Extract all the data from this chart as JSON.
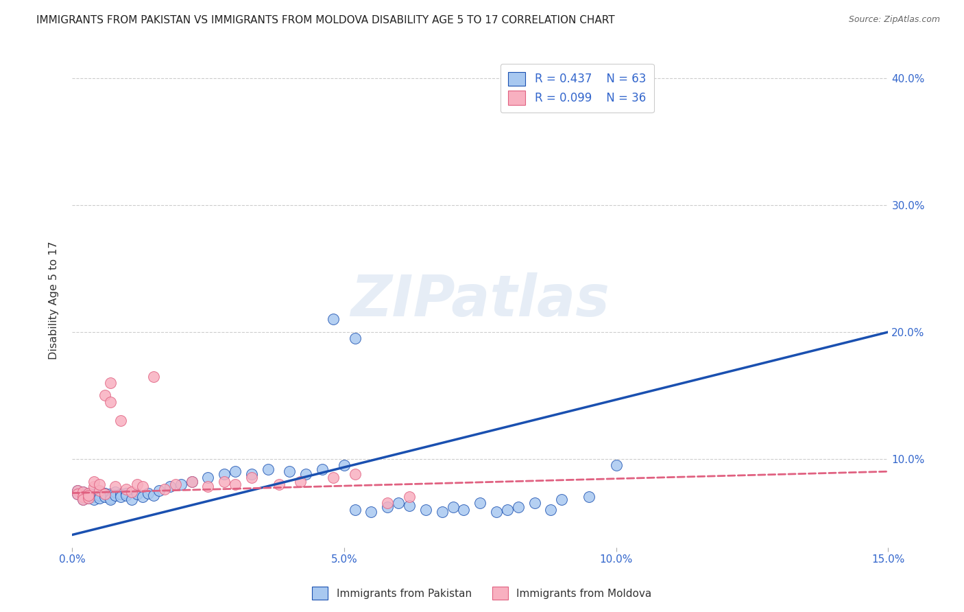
{
  "title": "IMMIGRANTS FROM PAKISTAN VS IMMIGRANTS FROM MOLDOVA DISABILITY AGE 5 TO 17 CORRELATION CHART",
  "source": "Source: ZipAtlas.com",
  "ylabel": "Disability Age 5 to 17",
  "xlim": [
    0.0,
    0.15
  ],
  "ylim": [
    0.03,
    0.42
  ],
  "xticks": [
    0.0,
    0.05,
    0.1,
    0.15
  ],
  "xticklabels": [
    "0.0%",
    "5.0%",
    "10.0%",
    "15.0%"
  ],
  "yticks": [
    0.1,
    0.2,
    0.3,
    0.4
  ],
  "yticklabels": [
    "10.0%",
    "20.0%",
    "30.0%",
    "40.0%"
  ],
  "legend_r1": "R = 0.437",
  "legend_n1": "N = 63",
  "legend_r2": "R = 0.099",
  "legend_n2": "N = 36",
  "color_pakistan": "#a8c8f0",
  "color_moldova": "#f8b0c0",
  "color_line_pakistan": "#1a50b0",
  "color_line_moldova": "#e06080",
  "background_color": "#ffffff",
  "grid_color": "#cccccc",
  "watermark": "ZIPatlas",
  "pakistan_x": [
    0.001,
    0.001,
    0.002,
    0.002,
    0.002,
    0.003,
    0.003,
    0.003,
    0.004,
    0.004,
    0.004,
    0.005,
    0.005,
    0.005,
    0.006,
    0.006,
    0.007,
    0.007,
    0.007,
    0.008,
    0.008,
    0.009,
    0.009,
    0.01,
    0.01,
    0.011,
    0.012,
    0.013,
    0.014,
    0.015,
    0.016,
    0.018,
    0.02,
    0.022,
    0.025,
    0.028,
    0.03,
    0.033,
    0.036,
    0.04,
    0.043,
    0.046,
    0.05,
    0.052,
    0.055,
    0.058,
    0.06,
    0.062,
    0.065,
    0.068,
    0.07,
    0.072,
    0.075,
    0.078,
    0.08,
    0.082,
    0.085,
    0.088,
    0.09,
    0.095,
    0.1,
    0.048,
    0.052
  ],
  "pakistan_y": [
    0.075,
    0.072,
    0.074,
    0.07,
    0.068,
    0.073,
    0.069,
    0.071,
    0.072,
    0.07,
    0.068,
    0.074,
    0.071,
    0.069,
    0.073,
    0.07,
    0.072,
    0.069,
    0.068,
    0.074,
    0.071,
    0.072,
    0.07,
    0.073,
    0.071,
    0.068,
    0.072,
    0.07,
    0.073,
    0.071,
    0.075,
    0.078,
    0.08,
    0.082,
    0.085,
    0.088,
    0.09,
    0.088,
    0.092,
    0.09,
    0.088,
    0.092,
    0.095,
    0.06,
    0.058,
    0.062,
    0.065,
    0.063,
    0.06,
    0.058,
    0.062,
    0.06,
    0.065,
    0.058,
    0.06,
    0.062,
    0.065,
    0.06,
    0.068,
    0.07,
    0.095,
    0.21,
    0.195
  ],
  "moldova_x": [
    0.001,
    0.001,
    0.002,
    0.002,
    0.002,
    0.003,
    0.003,
    0.003,
    0.004,
    0.004,
    0.005,
    0.005,
    0.006,
    0.006,
    0.007,
    0.007,
    0.008,
    0.009,
    0.01,
    0.011,
    0.012,
    0.013,
    0.015,
    0.017,
    0.019,
    0.022,
    0.025,
    0.028,
    0.03,
    0.033,
    0.038,
    0.042,
    0.048,
    0.052,
    0.058,
    0.062
  ],
  "moldova_y": [
    0.075,
    0.072,
    0.074,
    0.07,
    0.068,
    0.073,
    0.069,
    0.071,
    0.078,
    0.082,
    0.075,
    0.08,
    0.15,
    0.072,
    0.16,
    0.145,
    0.078,
    0.13,
    0.076,
    0.074,
    0.08,
    0.078,
    0.165,
    0.076,
    0.08,
    0.082,
    0.078,
    0.082,
    0.08,
    0.085,
    0.08,
    0.082,
    0.085,
    0.088,
    0.065,
    0.07
  ],
  "pk_line_x": [
    0.0,
    0.15
  ],
  "pk_line_y": [
    0.04,
    0.2
  ],
  "md_line_x": [
    0.0,
    0.15
  ],
  "md_line_y": [
    0.073,
    0.09
  ]
}
